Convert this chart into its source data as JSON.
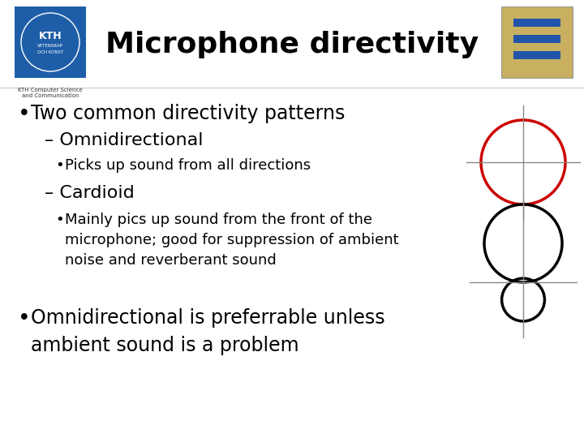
{
  "title": "Microphone directivity",
  "title_fontsize": 26,
  "background_color": "#ffffff",
  "text_color": "#000000",
  "bullet1": "Two common directivity patterns",
  "bullet1_fontsize": 17,
  "sub1": "– Omnidirectional",
  "sub1_fontsize": 16,
  "sub1b": "Picks up sound from all directions",
  "sub1b_fontsize": 13,
  "sub2": "– Cardioid",
  "sub2_fontsize": 16,
  "sub2b": "Mainly pics up sound from the front of the\nmicrophone; good for suppression of ambient\nnoise and reverberant sound",
  "sub2b_fontsize": 13,
  "bullet2": "Omnidirectional is preferrable unless\nambient sound is a problem",
  "bullet2_fontsize": 17,
  "omni_color": "#cc0000",
  "cardioid_color": "#000000",
  "crosshair_color": "#888888",
  "kth_bg": "#1e5ea8",
  "header_line_color": "#cccccc"
}
